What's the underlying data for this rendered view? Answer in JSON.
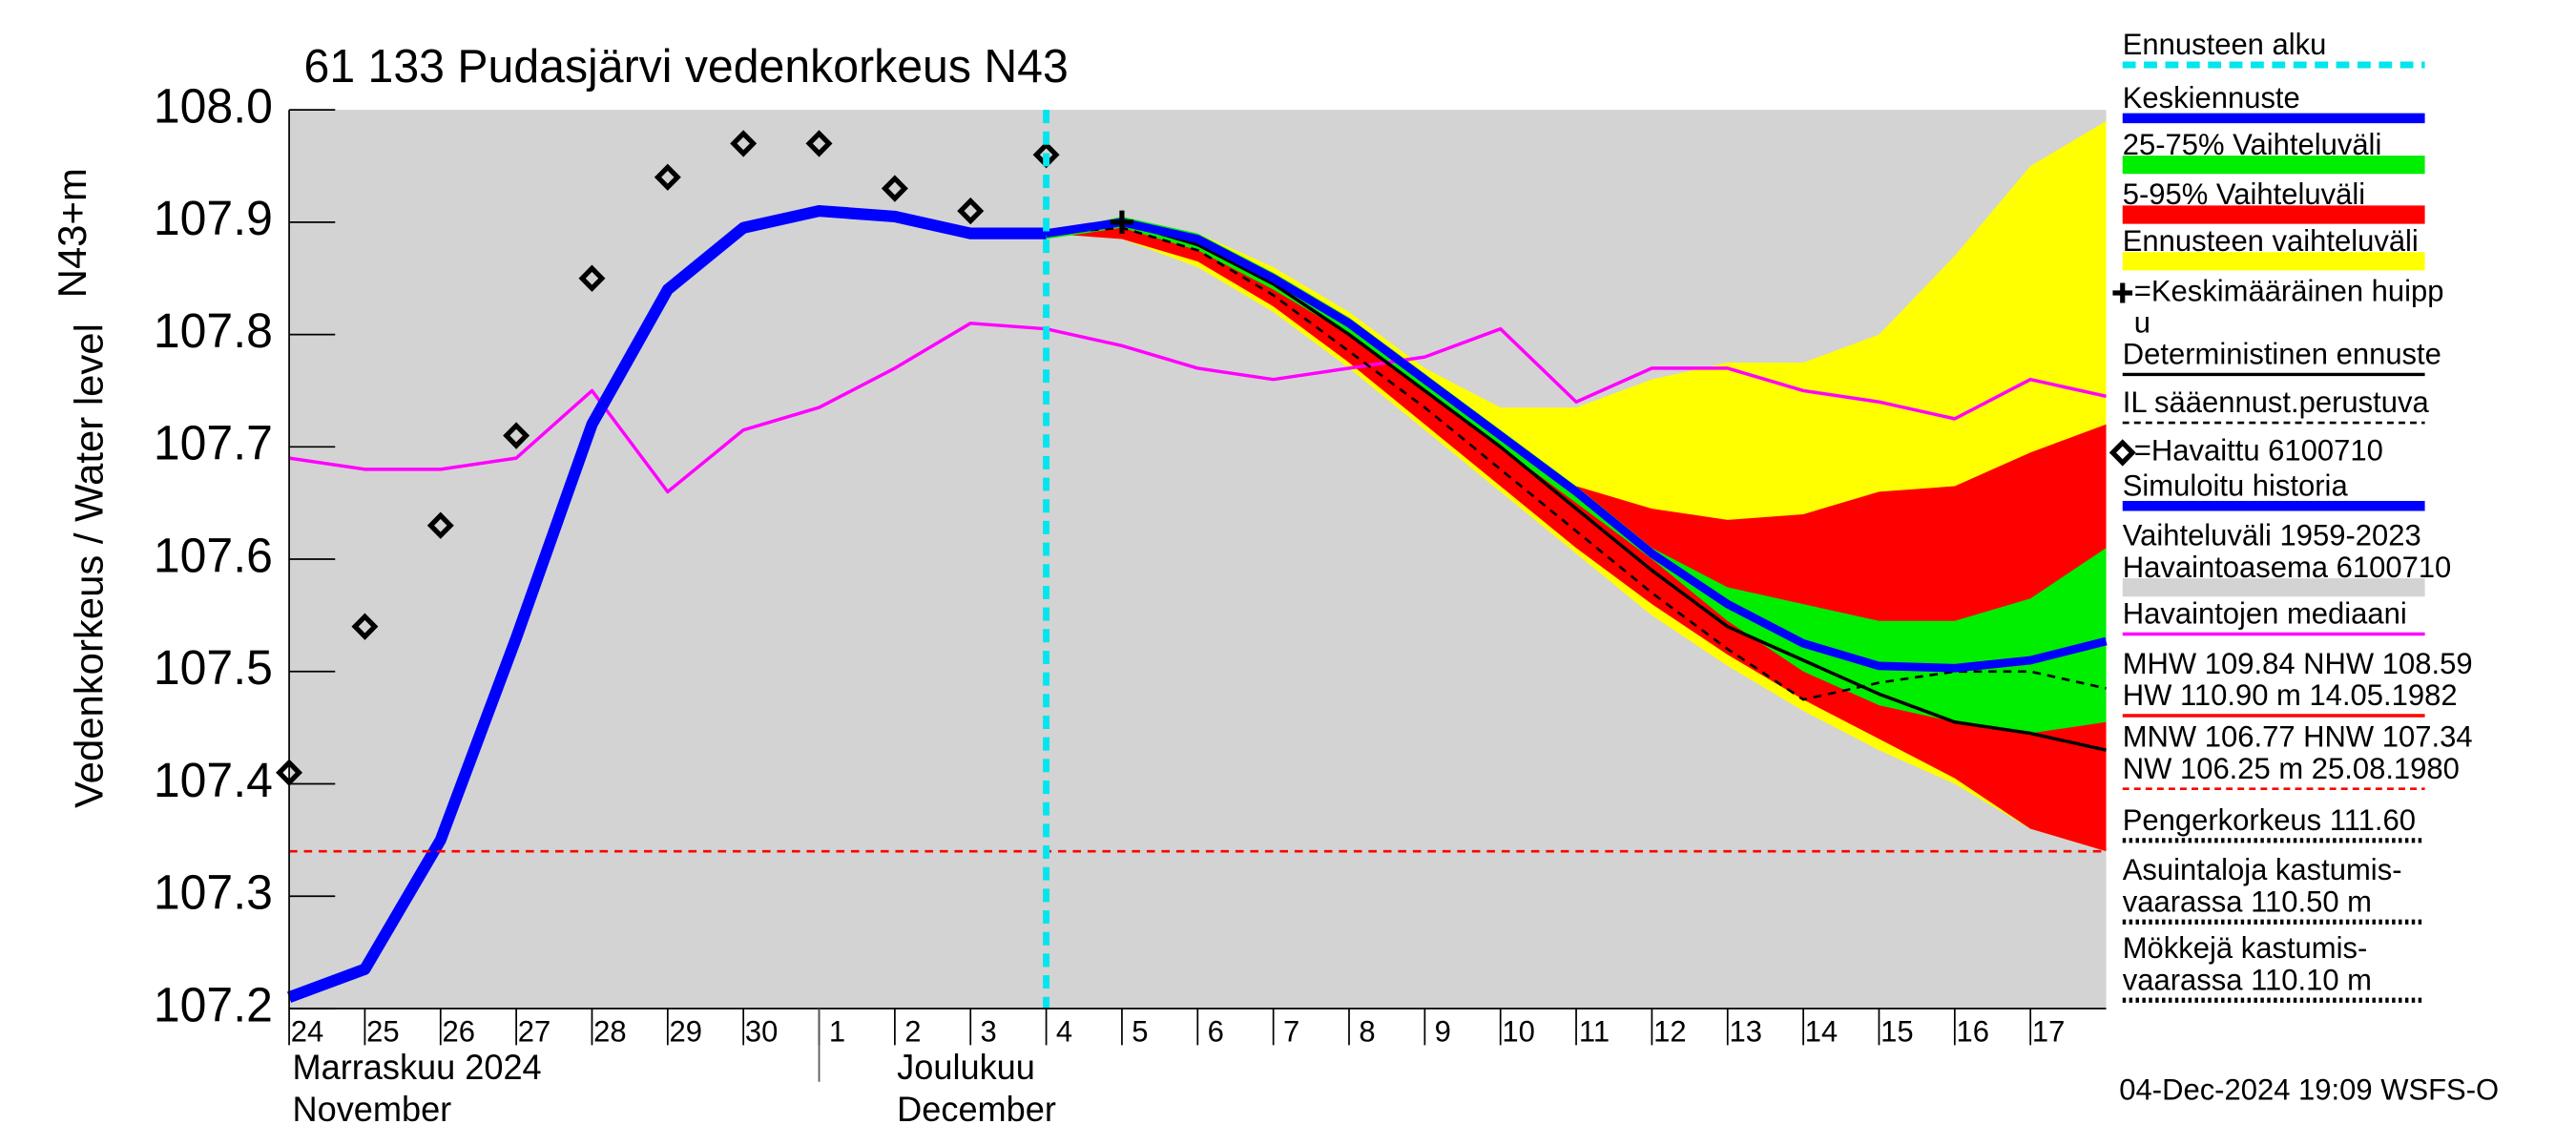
{
  "chart_data": {
    "type": "line",
    "title": "61 133 Pudasjärvi vedenkorkeus N43",
    "ylabel": "Vedenkorkeus / Water level",
    "ylabel2": "N43+m",
    "months": [
      "Marraskuu 2024",
      "November",
      "Joulukuu",
      "December"
    ],
    "month_ticks": [
      7
    ],
    "footer": "04-Dec-2024 19:09 WSFS-O",
    "xlim": [
      0,
      24
    ],
    "ylim": [
      107.2,
      108.0
    ],
    "yticks": [
      {
        "value": 108,
        "label": "108.0"
      },
      107.9,
      107.8,
      107.7,
      107.6,
      107.5,
      107.4,
      107.3,
      107.2
    ],
    "xticks": [
      {
        "value": 0,
        "label": "24"
      },
      {
        "value": 1,
        "label": "25"
      },
      {
        "value": 2,
        "label": "26"
      },
      {
        "value": 3,
        "label": "27"
      },
      {
        "value": 4,
        "label": "28"
      },
      {
        "value": 5,
        "label": "29"
      },
      {
        "value": 6,
        "label": "30"
      },
      {
        "value": 7,
        "label": "1"
      },
      {
        "value": 8,
        "label": "2"
      },
      {
        "value": 9,
        "label": "3"
      },
      {
        "value": 10,
        "label": "4"
      },
      {
        "value": 11,
        "label": "5"
      },
      {
        "value": 12,
        "label": "6"
      },
      {
        "value": 13,
        "label": "7"
      },
      {
        "value": 14,
        "label": "8"
      },
      {
        "value": 15,
        "label": "9"
      },
      {
        "value": 16,
        "label": "10"
      },
      {
        "value": 17,
        "label": "11"
      },
      {
        "value": 18,
        "label": "12"
      },
      {
        "value": 19,
        "label": "13"
      },
      {
        "value": 20,
        "label": "14"
      },
      {
        "value": 21,
        "label": "15"
      },
      {
        "value": 22,
        "label": "16"
      },
      {
        "value": 23,
        "label": "17"
      }
    ],
    "background": "#d3d3d3",
    "bands": [
      {
        "color": "#ffff00",
        "x": [
          10,
          11,
          12,
          13,
          14,
          15,
          16,
          17,
          18,
          19,
          20,
          21,
          22,
          23,
          24
        ],
        "high": [
          107.89,
          107.9,
          107.89,
          107.86,
          107.82,
          107.77,
          107.735,
          107.735,
          107.76,
          107.775,
          107.775,
          107.8,
          107.87,
          107.95,
          107.99
        ],
        "low": [
          107.89,
          107.885,
          107.86,
          107.82,
          107.77,
          107.715,
          107.66,
          107.605,
          107.55,
          107.505,
          107.465,
          107.43,
          107.4,
          107.36,
          107.34
        ]
      },
      {
        "color": "#ff0000",
        "x": [
          10,
          11,
          12,
          13,
          14,
          15,
          16,
          17,
          18,
          19,
          20,
          21,
          22,
          23,
          24
        ],
        "high": [
          107.89,
          107.9,
          107.885,
          107.855,
          107.815,
          107.765,
          107.71,
          107.665,
          107.645,
          107.635,
          107.64,
          107.66,
          107.665,
          107.695,
          107.72
        ],
        "low": [
          107.89,
          107.885,
          107.865,
          107.825,
          107.775,
          107.72,
          107.665,
          107.61,
          107.56,
          107.515,
          107.475,
          107.44,
          107.405,
          107.36,
          107.34
        ]
      },
      {
        "color": "#00ee00",
        "x": [
          10,
          11,
          12,
          13,
          14,
          15,
          16,
          17,
          18,
          19,
          20,
          21,
          22,
          23,
          24
        ],
        "high": [
          107.89,
          107.905,
          107.89,
          107.855,
          107.815,
          107.765,
          107.715,
          107.665,
          107.61,
          107.575,
          107.56,
          107.545,
          107.545,
          107.565,
          107.61
        ],
        "low": [
          107.885,
          107.895,
          107.875,
          107.84,
          107.8,
          107.75,
          107.7,
          107.65,
          107.6,
          107.545,
          107.5,
          107.47,
          107.455,
          107.445,
          107.455
        ]
      }
    ],
    "lines": [
      {
        "color": "#ff00ff",
        "width": 2,
        "dash": "",
        "x": [
          0,
          1,
          2,
          3,
          4,
          5,
          6,
          7,
          8,
          9,
          10,
          11,
          12,
          13,
          14,
          15,
          16,
          17,
          18,
          19,
          20,
          21,
          22,
          23,
          24
        ],
        "values": [
          107.69,
          107.68,
          107.68,
          107.69,
          107.75,
          107.66,
          107.715,
          107.735,
          107.77,
          107.81,
          107.805,
          107.79,
          107.77,
          107.76,
          107.77,
          107.78,
          107.805,
          107.74,
          107.77,
          107.77,
          107.75,
          107.74,
          107.725,
          107.76,
          107.745
        ]
      },
      {
        "color": "#000000",
        "width": 1.5,
        "dash": "5 4",
        "x": [
          10,
          11,
          12,
          13,
          14,
          15,
          16,
          17,
          18,
          19,
          20,
          21,
          22,
          23,
          24
        ],
        "values": [
          107.89,
          107.895,
          107.875,
          107.835,
          107.785,
          107.735,
          107.68,
          107.625,
          107.57,
          107.52,
          107.475,
          107.49,
          107.5,
          107.5,
          107.485
        ]
      },
      {
        "color": "#000000",
        "width": 2,
        "dash": "",
        "x": [
          10,
          11,
          12,
          13,
          14,
          15,
          16,
          17,
          18,
          19,
          20,
          21,
          22,
          23,
          24
        ],
        "values": [
          107.89,
          107.9,
          107.88,
          107.845,
          107.8,
          107.75,
          107.7,
          107.645,
          107.59,
          107.54,
          107.51,
          107.48,
          107.455,
          107.445,
          107.43
        ]
      },
      {
        "color": "#0000ff",
        "width": 7,
        "dash": "",
        "x": [
          0,
          1,
          2,
          3,
          4,
          5,
          6,
          7,
          8,
          9,
          10
        ],
        "values": [
          107.21,
          107.235,
          107.35,
          107.53,
          107.72,
          107.84,
          107.895,
          107.91,
          107.905,
          107.89,
          107.89
        ]
      },
      {
        "color": "#0000ff",
        "width": 5,
        "dash": "",
        "x": [
          10,
          11,
          12,
          13,
          14,
          15,
          16,
          17,
          18,
          19,
          20,
          21,
          22,
          23,
          24
        ],
        "values": [
          107.89,
          107.9,
          107.885,
          107.85,
          107.81,
          107.76,
          107.71,
          107.66,
          107.605,
          107.56,
          107.525,
          107.505,
          107.503,
          107.51,
          107.527
        ]
      }
    ],
    "hlines": [
      {
        "value": 107.34,
        "color": "#ff0000"
      }
    ],
    "observed": {
      "x": [
        0,
        1,
        2,
        3,
        4,
        5,
        6,
        7,
        8,
        9,
        10
      ],
      "values": [
        107.41,
        107.54,
        107.63,
        107.71,
        107.85,
        107.94,
        107.97,
        107.97,
        107.93,
        107.91,
        107.96
      ]
    },
    "forecast_start": 10,
    "forecast_color": "#00e5ee",
    "peak": {
      "x": 11,
      "y": 107.9
    },
    "legend": [
      {
        "lines": [
          "Ennusteen alku"
        ],
        "style": "dotted",
        "color": "#00e5ee"
      },
      {
        "lines": [
          "Keskiennuste"
        ],
        "style": "thick",
        "color": "#0000ff"
      },
      {
        "lines": [
          "25-75% Vaihteluväli"
        ],
        "style": "band",
        "color": "#00ee00"
      },
      {
        "lines": [
          "5-95% Vaihteluväli"
        ],
        "style": "band",
        "color": "#ff0000"
      },
      {
        "lines": [
          "Ennusteen vaihteluväli"
        ],
        "style": "band",
        "color": "#ffff00"
      },
      {
        "lines": [
          "=Keskimääräinen huipp",
          "u"
        ],
        "style": "plus",
        "color": "#000000"
      },
      {
        "lines": [
          "Deterministinen ennuste"
        ],
        "style": "line",
        "color": "#000000"
      },
      {
        "lines": [
          "IL sääennust.perustuva"
        ],
        "style": "dashed",
        "color": "#000000"
      },
      {
        "lines": [
          "=Havaittu 6100710"
        ],
        "style": "diamond",
        "color": "#000000"
      },
      {
        "lines": [
          "Simuloitu historia"
        ],
        "style": "thick",
        "color": "#0000ff"
      },
      {
        "lines": [
          "Vaihteluväli 1959-2023",
          " Havaintoasema 6100710"
        ],
        "style": "band",
        "color": "#d3d3d3"
      },
      {
        "lines": [
          "Havaintojen mediaani"
        ],
        "style": "line",
        "color": "#ff00ff"
      },
      {
        "lines": [
          "MHW 109.84 NHW 108.59",
          "HW 110.90 m 14.05.1982"
        ],
        "style": "line",
        "color": "#ff0000"
      },
      {
        "lines": [
          "MNW 106.77 HNW 107.34",
          "NW 106.25 m 25.08.1980"
        ],
        "style": "dashed",
        "color": "#ff0000"
      },
      {
        "lines": [
          "Pengerkorkeus 111.60"
        ],
        "style": "dotted",
        "color": "#000000"
      },
      {
        "lines": [
          "Asuintaloja kastumis-",
          "vaarassa 110.50 m"
        ],
        "style": "dotted",
        "color": "#000000"
      },
      {
        "lines": [
          "Mökkejä kastumis-",
          "   vaarassa 110.10 m"
        ],
        "style": "dotted",
        "color": "#000000"
      }
    ]
  }
}
